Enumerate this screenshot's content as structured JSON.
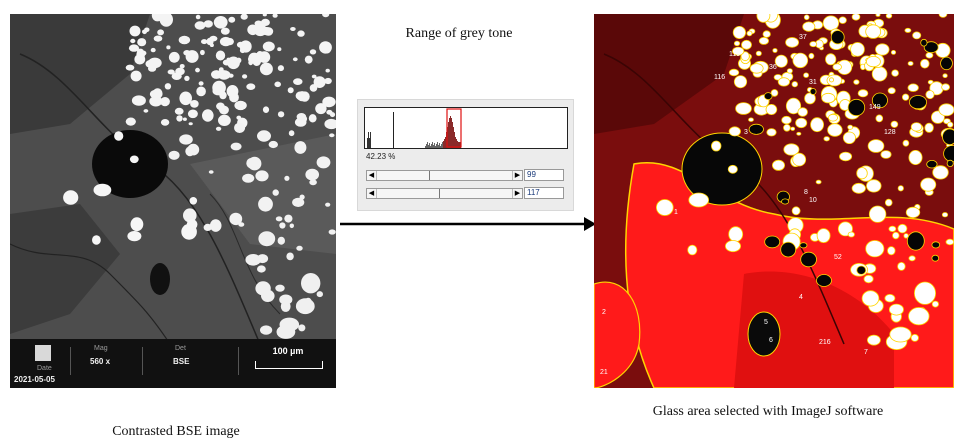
{
  "captions": {
    "left": "Contrasted BSE image",
    "middle": "Range of grey tone",
    "right": "Glass area selected with ImageJ software"
  },
  "bse_databar": {
    "mag_label": "Mag",
    "mag_value": "560 x",
    "det_label": "Det",
    "det_value": "BSE",
    "date_label": "Date",
    "date_value": "2021-05-05",
    "scale_label": "100 µm"
  },
  "threshold_dialog": {
    "percent": "42.23 %",
    "lower_value": "99",
    "upper_value": "117",
    "lower_fraction": 0.39,
    "upper_fraction": 0.46
  },
  "glass_labels": [
    "1",
    "2",
    "3",
    "4",
    "5",
    "6",
    "7",
    "8",
    "10",
    "21",
    "31",
    "36",
    "37",
    "52",
    "116",
    "119",
    "128",
    "149",
    "216"
  ],
  "colors": {
    "selection_red": "#ff1a1a",
    "outline_yellow": "#ffd400",
    "arrow": "#000000"
  }
}
